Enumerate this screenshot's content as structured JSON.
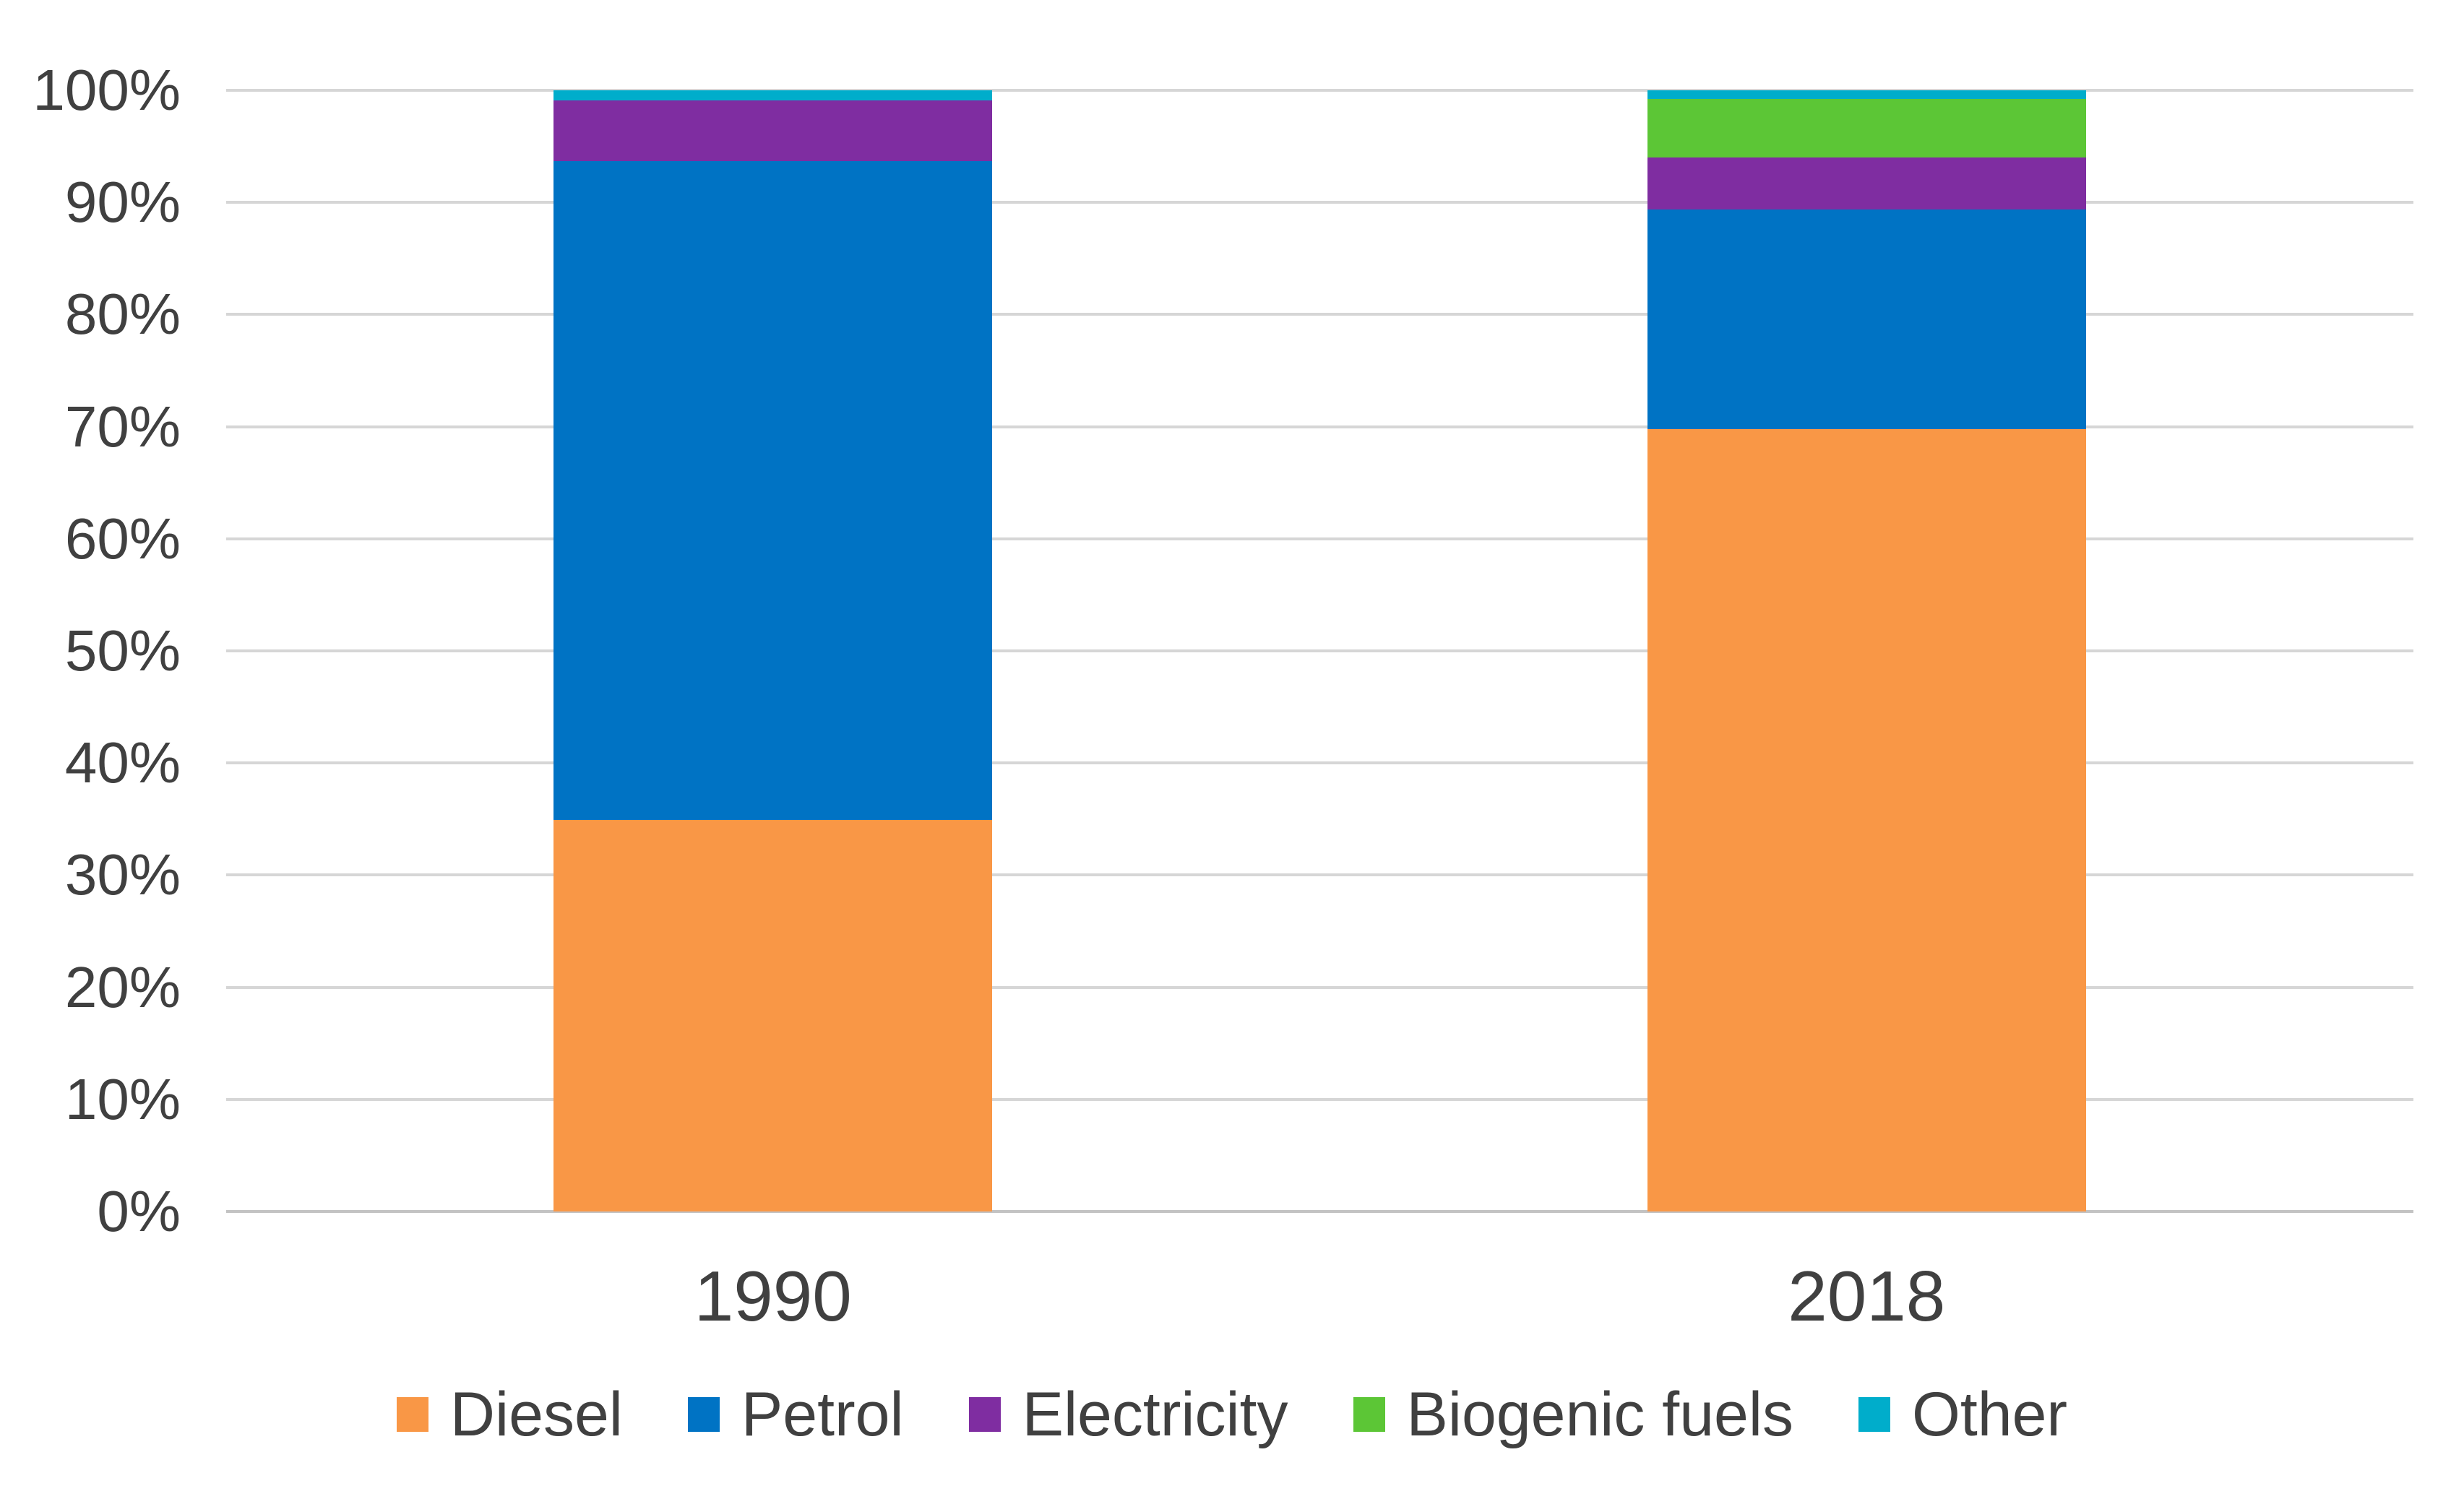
{
  "chart_data": {
    "type": "bar",
    "variant": "stacked-100-percent-column",
    "title": "",
    "xlabel": "",
    "ylabel": "",
    "categories": [
      "1990",
      "2018"
    ],
    "series": [
      {
        "name": "Diesel",
        "color": "#F99746",
        "values": [
          34.9,
          69.8
        ]
      },
      {
        "name": "Petrol",
        "color": "#0073C4",
        "values": [
          58.8,
          19.6
        ]
      },
      {
        "name": "Electricity",
        "color": "#7F2DA1",
        "values": [
          5.4,
          4.6
        ]
      },
      {
        "name": "Biogenic fuels",
        "color": "#5CC636",
        "values": [
          0,
          5.2
        ]
      },
      {
        "name": "Other",
        "color": "#00ADCB",
        "values": [
          0.9,
          0.8
        ]
      }
    ],
    "y_ticks": [
      "0%",
      "10%",
      "20%",
      "30%",
      "40%",
      "50%",
      "60%",
      "70%",
      "80%",
      "90%",
      "100%"
    ],
    "ylim": [
      0,
      100
    ],
    "grid": true,
    "gridline_color": "#D6D6D6",
    "axis_text_color": "#404040",
    "legend_position": "bottom"
  }
}
